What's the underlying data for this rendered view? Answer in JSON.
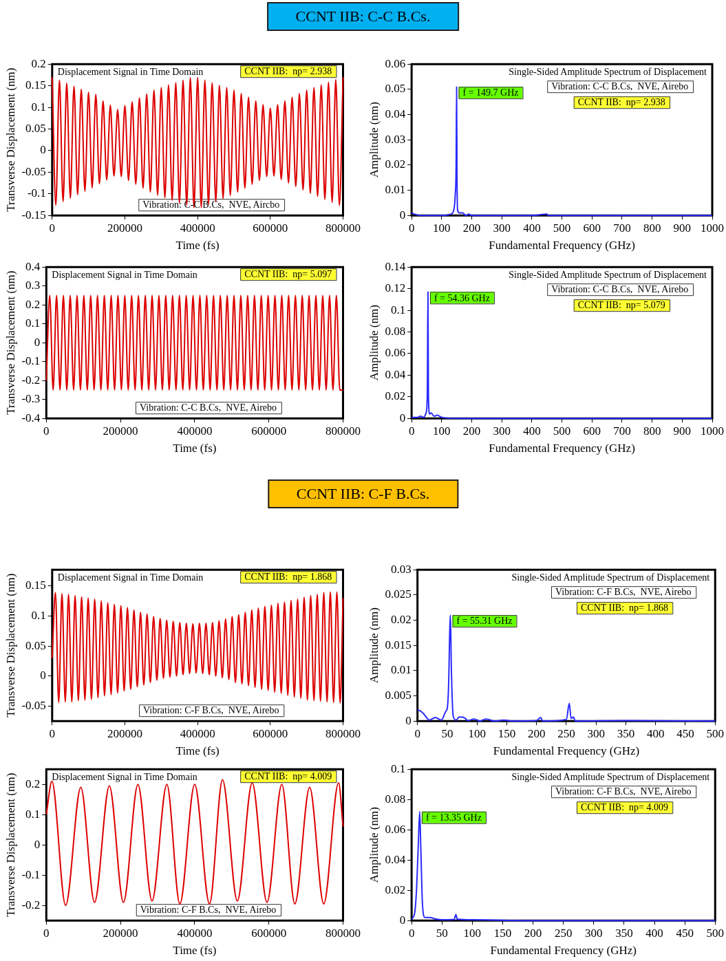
{
  "chart_data": [
    {
      "type": "line",
      "title": "Displacement Signal in Time Domain",
      "xlabel": "Time (fs)",
      "ylabel": "Transverse Displacement (nm)",
      "x": [
        0,
        10000,
        20000,
        30000,
        40000,
        50000,
        60000,
        70000,
        80000,
        90000,
        100000,
        110000,
        120000,
        130000,
        140000,
        150000,
        160000,
        170000,
        180000,
        190000,
        200000,
        210000,
        220000,
        230000,
        240000,
        250000,
        260000,
        270000,
        280000,
        290000,
        300000,
        310000,
        320000,
        330000,
        340000,
        350000,
        360000,
        370000,
        380000,
        390000,
        400000,
        410000,
        420000,
        430000,
        440000,
        450000,
        460000,
        470000,
        480000,
        490000,
        500000,
        510000,
        520000,
        530000,
        540000,
        550000,
        560000,
        570000,
        580000,
        590000,
        600000,
        610000,
        620000,
        630000,
        640000,
        650000,
        660000,
        670000,
        680000,
        690000,
        700000,
        710000,
        720000,
        730000,
        740000,
        750000,
        760000,
        770000,
        780000,
        790000,
        800000
      ],
      "series": [
        {
          "color": "#dd0000",
          "values": [
            0.17,
            -0.126,
            0.163,
            -0.118,
            0.156,
            -0.11,
            0.149,
            -0.102,
            0.142,
            -0.094,
            0.135,
            -0.086,
            0.13,
            -0.077,
            0.115,
            -0.068,
            0.105,
            -0.059,
            0.095,
            -0.06,
            0.104,
            -0.069,
            0.113,
            -0.078,
            0.122,
            -0.087,
            0.131,
            -0.096,
            0.14,
            -0.103,
            0.146,
            -0.109,
            0.152,
            -0.115,
            0.157,
            -0.121,
            0.163,
            -0.126,
            0.169,
            -0.132,
            0.169,
            -0.132,
            0.163,
            -0.125,
            0.157,
            -0.118,
            0.151,
            -0.111,
            0.146,
            -0.104,
            0.14,
            -0.096,
            0.132,
            -0.087,
            0.123,
            -0.078,
            0.115,
            -0.069,
            0.106,
            -0.06,
            0.098,
            -0.059,
            0.106,
            -0.067,
            0.115,
            -0.075,
            0.123,
            -0.083,
            0.132,
            -0.091,
            0.14,
            -0.099,
            0.146,
            -0.106,
            0.152,
            -0.113,
            0.158,
            -0.12,
            0.164,
            -0.127,
            0.17
          ]
        }
      ],
      "xlim": [
        0,
        800000
      ],
      "ylim": [
        -0.15,
        0.2
      ],
      "xticks": [
        0,
        200000,
        400000,
        600000,
        800000
      ],
      "yticks": [
        -0.15,
        -0.1,
        -0.05,
        0,
        0.05,
        0.1,
        0.15,
        0.2
      ],
      "annotations": [
        "CCNT IIB:  np= 2.938",
        "Vibration: C-C B.Cs,  NVE, Aircbo",
        "CCNT IIB:  C-C B.Cs."
      ]
    },
    {
      "type": "line",
      "title": "Single-Sided Amplitude Spectrum of Displacement",
      "xlabel": "Fundamental Frequency (GHz)",
      "ylabel": "Amplitude (nm)",
      "x": [
        0,
        10,
        30,
        100,
        130,
        140,
        145,
        148,
        149.7,
        151,
        153,
        160,
        170,
        180,
        190,
        200,
        300,
        400,
        450,
        455,
        1000
      ],
      "series": [
        {
          "color": "#2a2aff",
          "values": [
            0.001,
            0.0005,
            0,
            0,
            0.0005,
            0.002,
            0.008,
            0.02,
            0.051,
            0.015,
            0.002,
            0.001,
            0.001,
            0,
            0.0005,
            0,
            0,
            0,
            0.0005,
            0,
            0
          ]
        }
      ],
      "xlim": [
        0,
        1000
      ],
      "ylim": [
        0,
        0.06
      ],
      "xticks": [
        0,
        100,
        200,
        300,
        400,
        500,
        600,
        700,
        800,
        900,
        1000
      ],
      "yticks": [
        0,
        0.01,
        0.02,
        0.03,
        0.04,
        0.05,
        0.06
      ],
      "annotations": [
        "CCNT IIB:  np= 2.938",
        "Vibration: C-C B.Cs,  NVE, Airebo",
        {
          "text": "f = 149.7 GHz",
          "x": 149.7,
          "y": 0.051
        }
      ]
    },
    {
      "type": "line",
      "title": "Displacement Signal in Time Domain",
      "xlabel": "Time (fs)",
      "ylabel": "Transverse Displacement (nm)",
      "x": [
        0,
        9200,
        18400,
        27600,
        36800,
        46000,
        55200,
        64400,
        73600,
        82800,
        92000,
        101200,
        110400,
        119600,
        128800,
        138000,
        147200,
        156400,
        165600,
        174800,
        184000,
        193200,
        202400,
        211600,
        220800,
        230000,
        239200,
        248400,
        257600,
        266800,
        276000,
        285200,
        294400,
        303600,
        312800,
        322000,
        331200,
        340400,
        349600,
        358800,
        368000,
        377200,
        386400,
        395600,
        404800,
        414000,
        423200,
        432400,
        441600,
        450800,
        460000,
        469200,
        478400,
        487600,
        496800,
        506000,
        515200,
        524400,
        533600,
        542800,
        552000,
        561200,
        570400,
        579600,
        588800,
        598000,
        607200,
        616400,
        625600,
        634800,
        644000,
        653200,
        662400,
        671600,
        680800,
        690000,
        699200,
        708400,
        717600,
        726800,
        736000,
        745200,
        754400,
        763600,
        772800,
        782000,
        791200,
        800000
      ],
      "series": [
        {
          "color": "#dd0000",
          "values": [
            -0.2,
            0.25,
            -0.25,
            0.25,
            -0.25,
            0.25,
            -0.25,
            0.25,
            -0.25,
            0.25,
            -0.25,
            0.25,
            -0.25,
            0.25,
            -0.25,
            0.25,
            -0.25,
            0.25,
            -0.25,
            0.25,
            -0.25,
            0.25,
            -0.25,
            0.25,
            -0.25,
            0.25,
            -0.25,
            0.25,
            -0.25,
            0.25,
            -0.25,
            0.25,
            -0.25,
            0.25,
            -0.25,
            0.25,
            -0.25,
            0.25,
            -0.25,
            0.25,
            -0.25,
            0.25,
            -0.25,
            0.25,
            -0.25,
            0.25,
            -0.25,
            0.25,
            -0.25,
            0.25,
            -0.25,
            0.25,
            -0.25,
            0.25,
            -0.25,
            0.25,
            -0.25,
            0.25,
            -0.25,
            0.25,
            -0.25,
            0.25,
            -0.25,
            0.25,
            -0.25,
            0.25,
            -0.25,
            0.25,
            -0.25,
            0.25,
            -0.25,
            0.25,
            -0.25,
            0.25,
            -0.25,
            0.25,
            -0.25,
            0.25,
            -0.25,
            0.25,
            -0.25,
            0.25,
            -0.25,
            0.25,
            -0.25,
            0.25,
            -0.25,
            -0.25
          ]
        }
      ],
      "xlim": [
        0,
        800000
      ],
      "ylim": [
        -0.4,
        0.4
      ],
      "xticks": [
        0,
        200000,
        400000,
        600000,
        800000
      ],
      "yticks": [
        -0.4,
        -0.3,
        -0.2,
        -0.1,
        0,
        0.1,
        0.2,
        0.3,
        0.4
      ],
      "annotations": [
        "CCNT IIB:  np= 5.097",
        "Vibration: C-C B.Cs,  NVE, Airebo"
      ]
    },
    {
      "type": "line",
      "title": "Single-Sided Amplitude Spectrum of Displacement",
      "xlabel": "Fundamental Frequency (GHz)",
      "ylabel": "Amplitude (nm)",
      "x": [
        0,
        20,
        30,
        40,
        48,
        52,
        54.36,
        56,
        60,
        65,
        75,
        85,
        100,
        150,
        1000
      ],
      "series": [
        {
          "color": "#2a2aff",
          "values": [
            0.001,
            0.001,
            0.002,
            0.001,
            0.005,
            0.02,
            0.117,
            0.02,
            0.004,
            0.005,
            0.002,
            0.003,
            0.001,
            0,
            0
          ]
        }
      ],
      "xlim": [
        0,
        1000
      ],
      "ylim": [
        0,
        0.14
      ],
      "xticks": [
        0,
        100,
        200,
        300,
        400,
        500,
        600,
        700,
        800,
        900,
        1000
      ],
      "yticks": [
        0,
        0.02,
        0.04,
        0.06,
        0.08,
        0.1,
        0.12,
        0.14
      ],
      "annotations": [
        "CCNT IIB:  np= 5.079",
        "Vibration: C-C B.Cs,  NVE, Airebo",
        {
          "text": "f = 54.36 GHz",
          "x": 54.36,
          "y": 0.117
        }
      ]
    },
    {
      "type": "line",
      "title": "Displacement Signal in Time Domain",
      "xlabel": "Time (fs)",
      "ylabel": "Transverse Displacement (nm)",
      "x": [
        0,
        9000,
        18000,
        27000,
        36000,
        45000,
        54000,
        63000,
        72000,
        81000,
        90000,
        99000,
        108000,
        117000,
        126000,
        135000,
        144000,
        153000,
        162000,
        171000,
        180000,
        189000,
        198000,
        207000,
        216000,
        225000,
        234000,
        243000,
        252000,
        261000,
        270000,
        279000,
        288000,
        297000,
        306000,
        315000,
        324000,
        333000,
        342000,
        351000,
        360000,
        369000,
        378000,
        387000,
        396000,
        405000,
        414000,
        423000,
        432000,
        441000,
        450000,
        459000,
        468000,
        477000,
        486000,
        495000,
        504000,
        513000,
        522000,
        531000,
        540000,
        549000,
        558000,
        567000,
        576000,
        585000,
        594000,
        603000,
        612000,
        621000,
        630000,
        639000,
        648000,
        657000,
        666000,
        675000,
        684000,
        693000,
        702000,
        711000,
        720000,
        729000,
        738000,
        747000,
        756000,
        765000,
        774000,
        783000,
        792000,
        800000
      ],
      "series": [
        {
          "color": "#dd0000",
          "values": [
            0.03,
            0.139,
            -0.044,
            0.137,
            -0.043,
            0.136,
            -0.043,
            0.134,
            -0.041,
            0.132,
            -0.04,
            0.13,
            -0.039,
            0.128,
            -0.036,
            0.125,
            -0.033,
            0.122,
            -0.031,
            0.119,
            -0.028,
            0.117,
            -0.025,
            0.114,
            -0.022,
            0.11,
            -0.018,
            0.106,
            -0.015,
            0.103,
            -0.011,
            0.099,
            -0.007,
            0.096,
            -0.004,
            0.093,
            -0.002,
            0.091,
            0,
            0.089,
            0.002,
            0.088,
            0.004,
            0.087,
            0.005,
            0.088,
            0.004,
            0.088,
            0.002,
            0.089,
            0,
            0.092,
            -0.003,
            0.095,
            -0.006,
            0.099,
            -0.011,
            0.102,
            -0.013,
            0.106,
            -0.016,
            0.11,
            -0.019,
            0.113,
            -0.022,
            0.116,
            -0.024,
            0.118,
            -0.027,
            0.121,
            -0.029,
            0.123,
            -0.032,
            0.126,
            -0.035,
            0.128,
            -0.037,
            0.131,
            -0.04,
            0.134,
            -0.041,
            0.136,
            -0.042,
            0.139,
            -0.043,
            0.14,
            -0.044,
            0.14,
            -0.045,
            0.13
          ]
        }
      ],
      "xlim": [
        0,
        800000
      ],
      "ylim": [
        -0.075,
        0.177
      ],
      "xticks": [
        0,
        200000,
        400000,
        600000,
        800000
      ],
      "yticks": [
        -0.05,
        0,
        0.05,
        0.1,
        0.15
      ],
      "annotations": [
        "CCNT IIB:  np= 1.868",
        "Vibration: C-F B.Cs,  NVE, Airebo",
        "CCNT IIB:  C-F B.Cs."
      ]
    },
    {
      "type": "line",
      "title": "Single-Sided Amplitude Spectrum of Displacement",
      "xlabel": "Fundamental Frequency (GHz)",
      "ylabel": "Amplitude (nm)",
      "x": [
        0,
        5,
        10,
        20,
        30,
        40,
        48,
        50,
        52,
        55.31,
        57,
        60,
        65,
        70,
        78,
        85,
        95,
        105,
        115,
        130,
        145,
        160,
        200,
        207,
        210,
        250,
        255,
        258,
        262,
        265,
        350,
        500
      ],
      "series": [
        {
          "color": "#2a2aff",
          "values": [
            0.0022,
            0.002,
            0.0015,
            0.0002,
            0.0007,
            0.0002,
            0.002,
            0.0025,
            0.006,
            0.021,
            0.01,
            0.001,
            0.0002,
            0.0008,
            0.0007,
            0.0001,
            0.0004,
            0,
            0.0004,
            0,
            0.0002,
            0,
            0.0001,
            0.0007,
            0,
            0.0003,
            0.0035,
            0.0005,
            0.0008,
            0,
            0.0001,
            0
          ]
        }
      ],
      "xlim": [
        0,
        500
      ],
      "ylim": [
        0,
        0.03
      ],
      "xticks": [
        0,
        50,
        100,
        150,
        200,
        250,
        300,
        350,
        400,
        450,
        500
      ],
      "yticks": [
        0,
        0.005,
        0.01,
        0.015,
        0.02,
        0.025,
        0.03
      ],
      "annotations": [
        "CCNT IIB:  np= 1.868",
        "Vibration: C-F B.Cs,  NVE, Airebo",
        {
          "text": "f = 55.31 GHz",
          "x": 55.31,
          "y": 0.021
        }
      ]
    },
    {
      "type": "line",
      "title": "Displacement Signal in Time Domain",
      "xlabel": "Time (fs)",
      "ylabel": "Transverse Displacement (nm)",
      "x": [
        0,
        15000,
        52000,
        93000,
        130000,
        170000,
        208000,
        247000,
        285000,
        325000,
        360000,
        400000,
        440000,
        475000,
        515000,
        555000,
        595000,
        635000,
        670000,
        710000,
        748000,
        788000,
        800000
      ],
      "series": [
        {
          "color": "#dd0000",
          "values": [
            0.1,
            0.21,
            -0.2,
            0.19,
            -0.19,
            0.195,
            -0.19,
            0.2,
            -0.185,
            0.2,
            -0.195,
            0.2,
            -0.195,
            0.215,
            -0.185,
            0.205,
            -0.19,
            0.2,
            -0.195,
            0.19,
            -0.195,
            0.205,
            0.06
          ]
        }
      ],
      "xlim": [
        0,
        800000
      ],
      "ylim": [
        -0.25,
        0.25
      ],
      "xticks": [
        0,
        200000,
        400000,
        600000,
        800000
      ],
      "yticks": [
        -0.2,
        -0.1,
        0,
        0.1,
        0.2
      ],
      "annotations": [
        "CCNT IIB:  np= 4.009",
        "Vibration: C-F B.Cs,  NVE, Airebo"
      ]
    },
    {
      "type": "line",
      "title": "Single-Sided Amplitude Spectrum of Displacement",
      "xlabel": "Fundamental Frequency (GHz)",
      "ylabel": "Amplitude (nm)",
      "x": [
        0,
        5,
        8,
        11,
        13.35,
        15,
        18,
        22,
        30,
        40,
        50,
        70,
        73,
        75,
        100,
        200,
        500
      ],
      "series": [
        {
          "color": "#2a2aff",
          "values": [
            0.001,
            0.005,
            0.02,
            0.05,
            0.072,
            0.05,
            0.01,
            0.002,
            0.002,
            0.001,
            0.0005,
            0.0008,
            0.004,
            0.001,
            0.0005,
            0,
            0
          ]
        }
      ],
      "xlim": [
        0,
        500
      ],
      "ylim": [
        0,
        0.1
      ],
      "xticks": [
        0,
        50,
        100,
        150,
        200,
        250,
        300,
        350,
        400,
        450,
        500
      ],
      "yticks": [
        0,
        0.02,
        0.04,
        0.06,
        0.08,
        0.1
      ],
      "annotations": [
        "CCNT IIB:  np= 4.009",
        "Vibration: C-F B.Cs,  NVE, Airebo",
        {
          "text": "f = 13.35 GHz",
          "x": 13.35,
          "y": 0.072
        }
      ]
    }
  ]
}
